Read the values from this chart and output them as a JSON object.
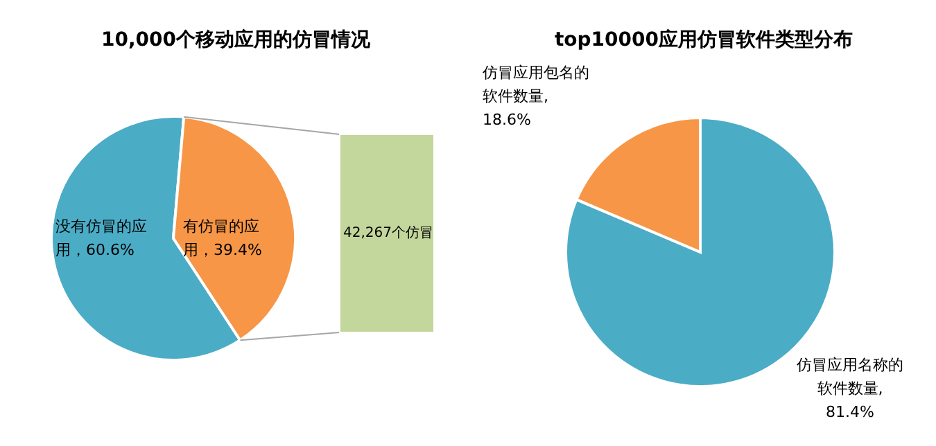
{
  "chart_data": [
    {
      "type": "pie",
      "title": "10,000个移动应用的仿冒情况",
      "categories": [
        "没有仿冒的应用",
        "有仿冒的应用"
      ],
      "values": [
        60.6,
        39.4
      ],
      "colors": [
        "#4bacc6",
        "#f79646"
      ],
      "value_labels": [
        "，60.6%",
        "，39.4%"
      ],
      "annotations": [
        "42,267个仿冒"
      ]
    },
    {
      "type": "pie",
      "title": "top10000应用仿冒软件类型分布",
      "categories": [
        "仿冒应用名称的软件数量",
        "仿冒应用包名的软件数量"
      ],
      "values": [
        81.4,
        18.6
      ],
      "colors": [
        "#4bacc6",
        "#f79646"
      ],
      "value_labels": [
        ", 81.4%",
        ", 18.6%"
      ]
    }
  ]
}
